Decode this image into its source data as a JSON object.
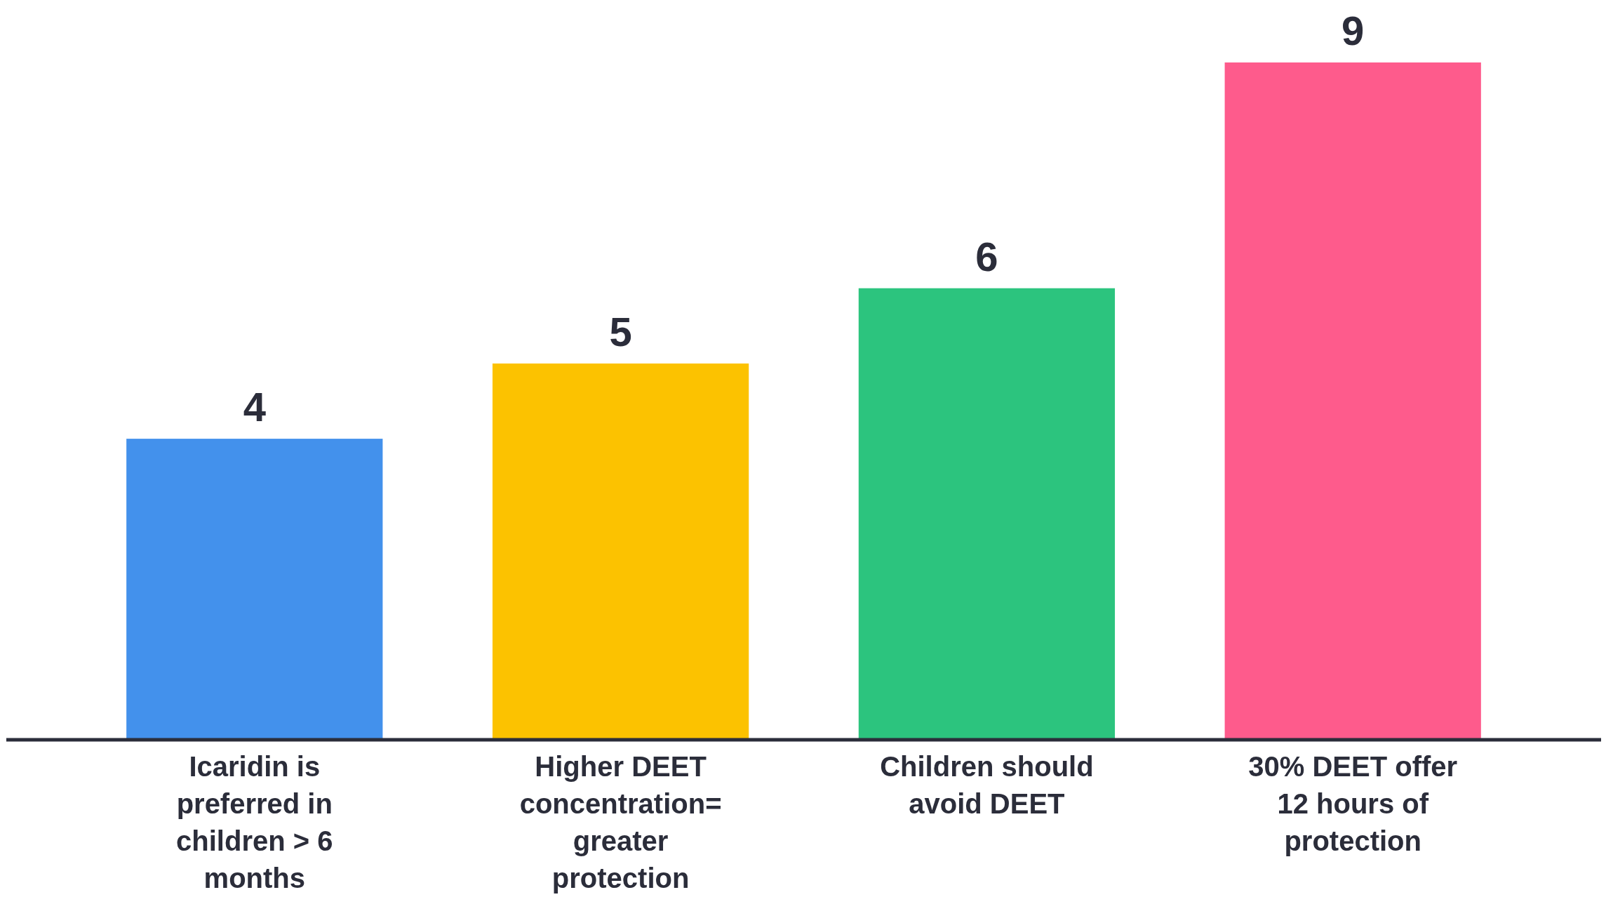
{
  "chart_data": {
    "type": "bar",
    "categories": [
      "Icaridin is preferred in children > 6 months",
      "Higher DEET concentration= greater protection",
      "Children should avoid DEET",
      "30% DEET offer 12 hours of protection"
    ],
    "values": [
      4,
      5,
      6,
      9
    ],
    "colors": [
      "#4391ec",
      "#fcc200",
      "#2cc47e",
      "#fe5b8c"
    ],
    "data_labels": true
  }
}
